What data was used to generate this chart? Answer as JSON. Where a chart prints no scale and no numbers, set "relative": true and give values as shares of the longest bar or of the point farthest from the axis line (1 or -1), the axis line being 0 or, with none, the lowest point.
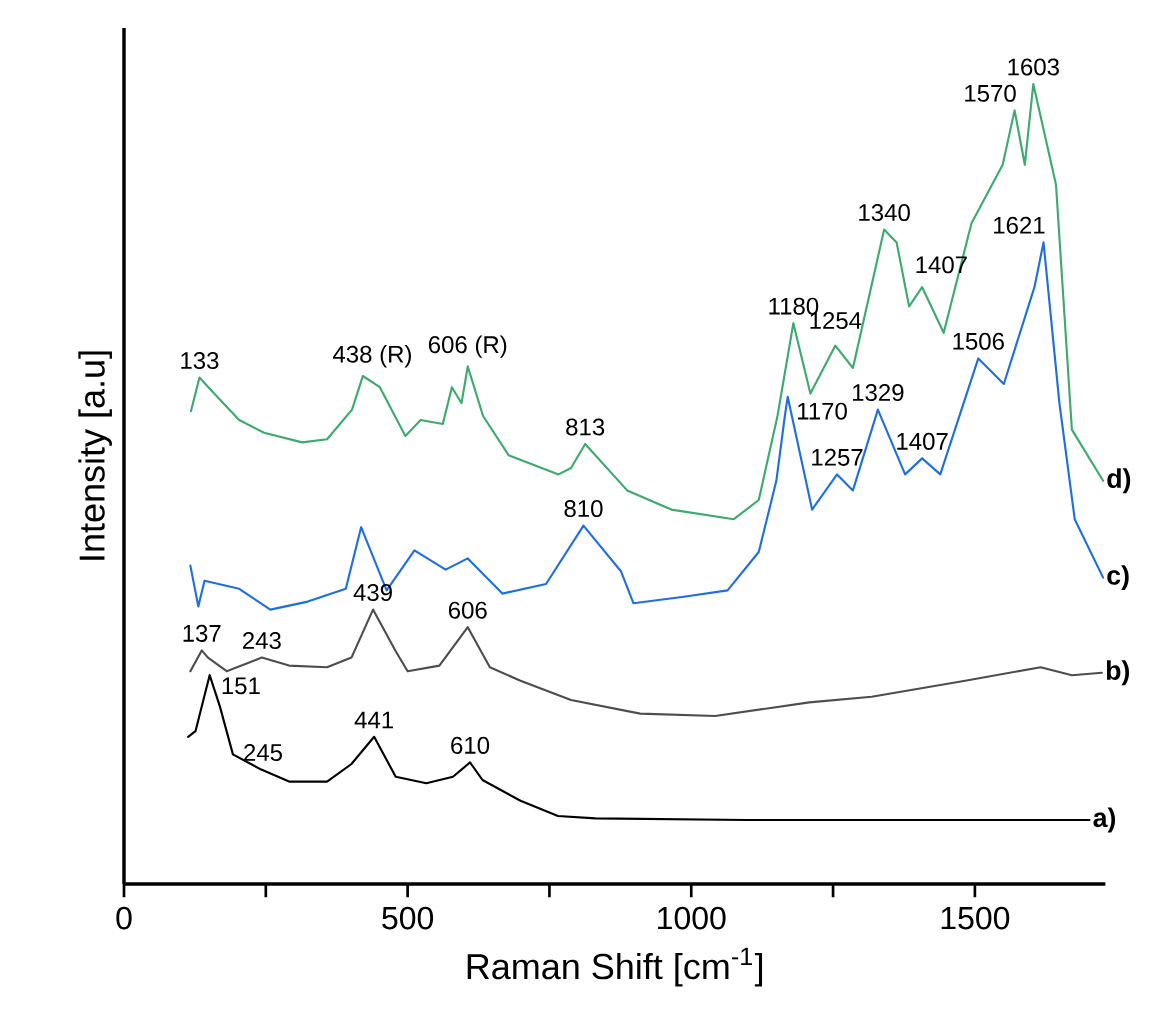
{
  "chart_data": {
    "type": "line",
    "xlabel": "Raman Shift [cm$^{-1}$]",
    "ylabel": "Intensity [a.u]",
    "relative": true,
    "xlim": [
      0,
      1730
    ],
    "xticks": [
      0,
      500,
      1000,
      1500,
      {
        "value": 250,
        "label": null
      },
      {
        "value": 750,
        "label": null
      },
      {
        "value": 1250,
        "label": null
      }
    ],
    "grid": false,
    "series": [
      {
        "name": "a)",
        "color": "#000000",
        "x": [
          113,
          126,
          151,
          169,
          192,
          242,
          291,
          358,
          401,
          441,
          479,
          533,
          580,
          610,
          632,
          699,
          765,
          831,
          1096,
          1702
        ],
        "values": [
          0.184,
          0.191,
          0.261,
          0.222,
          0.162,
          0.143,
          0.128,
          0.128,
          0.15,
          0.184,
          0.134,
          0.126,
          0.134,
          0.152,
          0.13,
          0.104,
          0.085,
          0.082,
          0.08,
          0.08
        ]
      },
      {
        "name": "b)",
        "color": "#4d4d4d",
        "x": [
          117,
          137,
          148,
          181,
          243,
          291,
          358,
          401,
          439,
          479,
          500,
          556,
          606,
          645,
          699,
          788,
          910,
          1042,
          1208,
          1318,
          1483,
          1616,
          1671,
          1724
        ],
        "values": [
          0.266,
          0.292,
          0.283,
          0.266,
          0.283,
          0.273,
          0.271,
          0.283,
          0.343,
          0.291,
          0.266,
          0.273,
          0.321,
          0.271,
          0.254,
          0.23,
          0.213,
          0.21,
          0.227,
          0.234,
          0.254,
          0.271,
          0.261,
          0.264
        ]
      },
      {
        "name": "c)",
        "color": "#1f6fe0",
        "x": [
          117,
          131,
          142,
          203,
          258,
          324,
          391,
          418,
          463,
          512,
          567,
          606,
          667,
          744,
          810,
          876,
          898,
          987,
          1064,
          1119,
          1150,
          1165,
          1170,
          1213,
          1257,
          1285,
          1329,
          1377,
          1407,
          1439,
          1506,
          1551,
          1605,
          1621,
          1649,
          1676,
          1726
        ],
        "values": [
          0.398,
          0.347,
          0.379,
          0.369,
          0.343,
          0.353,
          0.369,
          0.446,
          0.367,
          0.417,
          0.393,
          0.407,
          0.363,
          0.375,
          0.448,
          0.391,
          0.351,
          0.359,
          0.367,
          0.415,
          0.504,
          0.585,
          0.609,
          0.468,
          0.512,
          0.492,
          0.593,
          0.512,
          0.532,
          0.512,
          0.657,
          0.625,
          0.746,
          0.802,
          0.601,
          0.456,
          0.383
        ]
      },
      {
        "name": "d)",
        "color": "#3daa6e",
        "x": [
          118,
          133,
          159,
          203,
          247,
          314,
          358,
          402,
          421,
          451,
          496,
          523,
          562,
          578,
          595,
          606,
          633,
          678,
          766,
          788,
          813,
          887,
          965,
          1075,
          1119,
          1152,
          1180,
          1210,
          1254,
          1285,
          1340,
          1362,
          1384,
          1407,
          1445,
          1494,
          1549,
          1570,
          1588,
          1603,
          1643,
          1671,
          1726
        ],
        "values": [
          0.591,
          0.633,
          0.613,
          0.58,
          0.564,
          0.552,
          0.556,
          0.593,
          0.635,
          0.621,
          0.56,
          0.58,
          0.575,
          0.621,
          0.601,
          0.647,
          0.585,
          0.536,
          0.512,
          0.52,
          0.55,
          0.492,
          0.468,
          0.456,
          0.48,
          0.585,
          0.701,
          0.613,
          0.673,
          0.645,
          0.818,
          0.802,
          0.722,
          0.746,
          0.689,
          0.826,
          0.899,
          0.967,
          0.899,
          1.0,
          0.874,
          0.568,
          0.504
        ]
      }
    ],
    "annotations": [
      {
        "text": "151",
        "x": 151,
        "y": 0.261
      },
      {
        "text": "245",
        "x": 245,
        "y": 0.143
      },
      {
        "text": "441",
        "x": 441,
        "y": 0.184
      },
      {
        "text": "610",
        "x": 610,
        "y": 0.152
      },
      {
        "text": "137",
        "x": 137,
        "y": 0.292
      },
      {
        "text": "243",
        "x": 243,
        "y": 0.283
      },
      {
        "text": "439",
        "x": 439,
        "y": 0.343
      },
      {
        "text": "606",
        "x": 606,
        "y": 0.321
      },
      {
        "text": "810",
        "x": 810,
        "y": 0.448
      },
      {
        "text": "1170",
        "x": 1170,
        "y": 0.609
      },
      {
        "text": "1257",
        "x": 1257,
        "y": 0.512
      },
      {
        "text": "1329",
        "x": 1329,
        "y": 0.593
      },
      {
        "text": "1407",
        "x": 1407,
        "y": 0.532
      },
      {
        "text": "1506",
        "x": 1506,
        "y": 0.657
      },
      {
        "text": "1621",
        "x": 1621,
        "y": 0.802
      },
      {
        "text": "133",
        "x": 133,
        "y": 0.633
      },
      {
        "text": "438 (R)",
        "x": 438,
        "y": 0.635
      },
      {
        "text": "606 (R)",
        "x": 606,
        "y": 0.647
      },
      {
        "text": "813",
        "x": 813,
        "y": 0.55
      },
      {
        "text": "1180",
        "x": 1180,
        "y": 0.701
      },
      {
        "text": "1254",
        "x": 1254,
        "y": 0.673
      },
      {
        "text": "1340",
        "x": 1340,
        "y": 0.818
      },
      {
        "text": "1407",
        "x": 1407,
        "y": 0.746
      },
      {
        "text": "1570",
        "x": 1570,
        "y": 0.967
      },
      {
        "text": "1603",
        "x": 1603,
        "y": 1.0
      }
    ]
  }
}
